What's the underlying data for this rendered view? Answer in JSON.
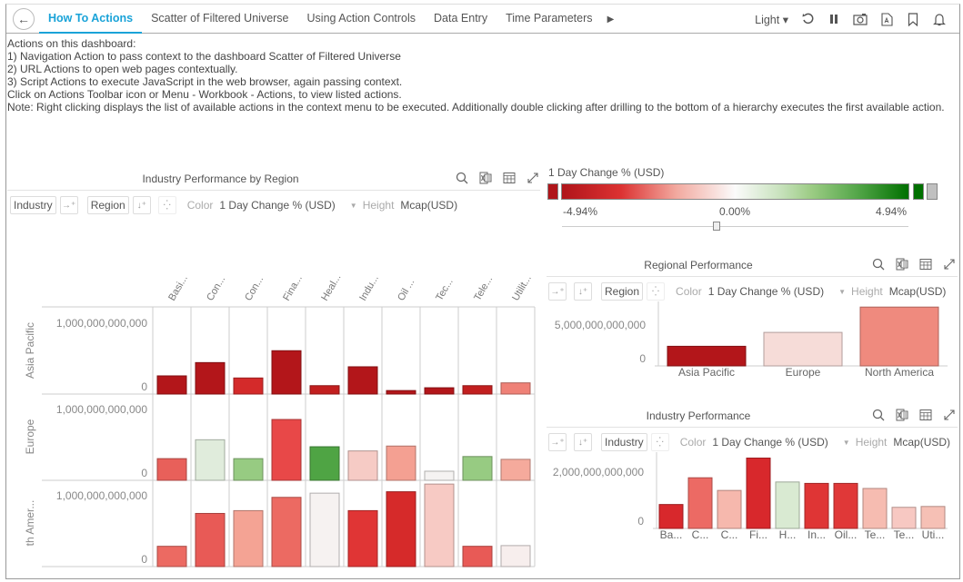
{
  "nav": {
    "back_label": "←",
    "tabs": [
      {
        "label": "How To Actions",
        "active": true
      },
      {
        "label": "Scatter of Filtered Universe",
        "active": false
      },
      {
        "label": "Using Action Controls",
        "active": false
      },
      {
        "label": "Data Entry",
        "active": false
      },
      {
        "label": "Time Parameters",
        "active": false
      }
    ],
    "more_icon": "▶",
    "theme": "Light",
    "theme_caret": "▾",
    "icons": [
      "refresh-icon",
      "pause-icon",
      "snapshot-icon",
      "pdf-icon",
      "bookmark-icon",
      "alert-bell-icon"
    ]
  },
  "notes": [
    "Actions on this dashboard:",
    "1) Navigation Action to pass context to the dashboard Scatter of Filtered Universe",
    "2) URL Actions to open web pages contextually.",
    "3) Script Actions to execute JavaScript in the web browser, again passing context.",
    "Click on Actions Toolbar icon or Menu - Workbook - Actions, to view listed actions.",
    "Note: Right clicking displays the list of available actions in the context menu to be executed.   Additionally double clicking after drilling to the bottom of a hierarchy executes the first available action."
  ],
  "colors": {
    "accent": "#1aa3d8",
    "negative_max": "#b0151a",
    "positive_max": "#007000",
    "null_color": "#c0c0c0"
  },
  "legend": {
    "title": "1 Day Change % (USD)",
    "min": "-4.94%",
    "mid": "0.00%",
    "max": "4.94%",
    "slider_position": 0.5
  },
  "controls": {
    "color_label": "Color",
    "color_value": "1 Day Change % (USD)",
    "height_label": "Height",
    "height_value": "Mcap(USD)"
  },
  "panel_left": {
    "title": "Industry Performance by Region",
    "pill_x": "Industry",
    "pill_y": "Region"
  },
  "panel_regional": {
    "title": "Regional Performance",
    "pill": "Region"
  },
  "panel_industry": {
    "title": "Industry Performance",
    "pill": "Industry"
  },
  "chart_data": [
    {
      "type": "bar",
      "title": "Industry Performance by Region",
      "categories": [
        "Basi...",
        "Con...",
        "Con...",
        "Fina...",
        "Heal...",
        "Indu...",
        "Oil ...",
        "Tec...",
        "Tele...",
        "Utilit..."
      ],
      "rows": [
        "Asia Pacific",
        "Europe",
        "th Amer..."
      ],
      "y_tick_labels": [
        "0",
        "1,000,000,000,000"
      ],
      "ylim": [
        0,
        1200000000000
      ],
      "series": [
        {
          "name": "Asia Pacific",
          "values": [
            260000000000,
            450000000000,
            230000000000,
            620000000000,
            120000000000,
            390000000000,
            50000000000,
            90000000000,
            120000000000,
            160000000000
          ],
          "colors": [
            "#b3161a",
            "#b3161a",
            "#d42a2a",
            "#b3161a",
            "#c21f1f",
            "#b3161a",
            "#b3161a",
            "#b3161a",
            "#c21f1f",
            "#ef8177"
          ]
        },
        {
          "name": "Europe",
          "values": [
            310000000000,
            580000000000,
            310000000000,
            870000000000,
            480000000000,
            420000000000,
            490000000000,
            130000000000,
            340000000000,
            300000000000
          ],
          "colors": [
            "#e8605a",
            "#e0ecdc",
            "#97cb82",
            "#e84848",
            "#4fa444",
            "#f6cbc5",
            "#f4a092",
            "#f5f3f2",
            "#97cb82",
            "#f5aa9c"
          ]
        },
        {
          "name": "North America",
          "values": [
            290000000000,
            760000000000,
            800000000000,
            990000000000,
            1050000000000,
            800000000000,
            1070000000000,
            1180000000000,
            290000000000,
            300000000000
          ],
          "colors": [
            "#ec6a62",
            "#e85a56",
            "#f4a394",
            "#ec6a62",
            "#f6f2f1",
            "#e03535",
            "#d62a2a",
            "#f7cac4",
            "#e85a56",
            "#f7eeed"
          ]
        }
      ]
    },
    {
      "type": "bar",
      "title": "Regional Performance",
      "categories": [
        "Asia Pacific",
        "Europe",
        "North America"
      ],
      "values": [
        2400000000000,
        4100000000000,
        7200000000000
      ],
      "colors": [
        "#b3161a",
        "#f6dcd8",
        "#ef8a7e"
      ],
      "y_tick_labels": [
        "0",
        "5,000,000,000,000"
      ],
      "ylim": [
        0,
        7500000000000
      ]
    },
    {
      "type": "bar",
      "title": "Industry Performance",
      "categories": [
        "Ba...",
        "C...",
        "C...",
        "Fi...",
        "H...",
        "In...",
        "Oil...",
        "Te...",
        "Te...",
        "Uti..."
      ],
      "values": [
        850000000000,
        1800000000000,
        1350000000000,
        2500000000000,
        1650000000000,
        1600000000000,
        1600000000000,
        1420000000000,
        750000000000,
        780000000000
      ],
      "colors": [
        "#d8282c",
        "#ec6a64",
        "#f6b8ad",
        "#d8282c",
        "#d9ead2",
        "#df3535",
        "#e03838",
        "#f6bcb1",
        "#f7c8c2",
        "#f6c0b5"
      ],
      "y_tick_labels": [
        "0",
        "2,000,000,000,000"
      ],
      "ylim": [
        0,
        2600000000000
      ]
    }
  ]
}
